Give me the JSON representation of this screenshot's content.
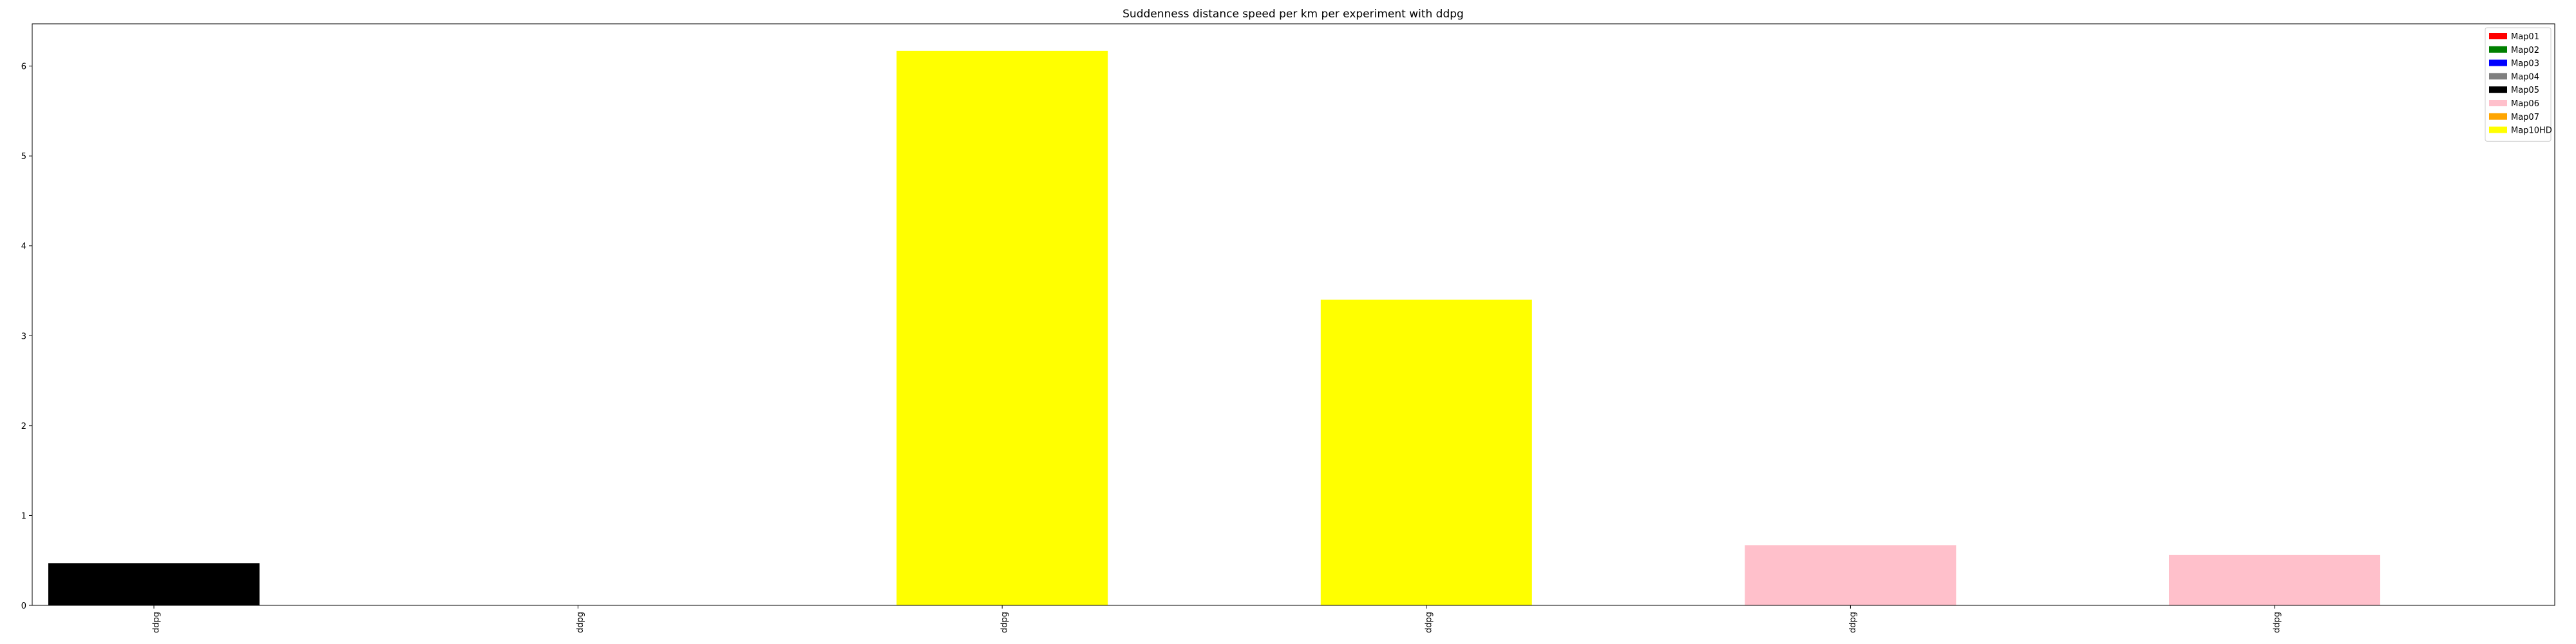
{
  "chart_data": {
    "type": "bar",
    "title": "Suddenness distance speed per km per experiment with ddpg",
    "xlabel": "",
    "ylabel": "",
    "categories": [
      "ddpg",
      "ddpg",
      "ddpg",
      "ddpg",
      "ddpg",
      "ddpg"
    ],
    "values": [
      0.47,
      0.0,
      6.17,
      3.4,
      0.67,
      0.56
    ],
    "bar_colors": [
      "#000000",
      "#000000",
      "#ffff00",
      "#ffff00",
      "#ffc0cb",
      "#ffc0cb"
    ],
    "ylim": [
      0,
      6.47
    ],
    "yticks": [
      0,
      1,
      2,
      3,
      4,
      5,
      6
    ],
    "grid": false,
    "legend_position": "top-right",
    "legend": [
      {
        "name": "Map01",
        "color": "#ff0000"
      },
      {
        "name": "Map02",
        "color": "#008000"
      },
      {
        "name": "Map03",
        "color": "#0000ff"
      },
      {
        "name": "Map04",
        "color": "#808080"
      },
      {
        "name": "Map05",
        "color": "#000000"
      },
      {
        "name": "Map06",
        "color": "#ffc0cb"
      },
      {
        "name": "Map07",
        "color": "#ffa500"
      },
      {
        "name": "Map10HD",
        "color": "#ffff00"
      }
    ]
  }
}
